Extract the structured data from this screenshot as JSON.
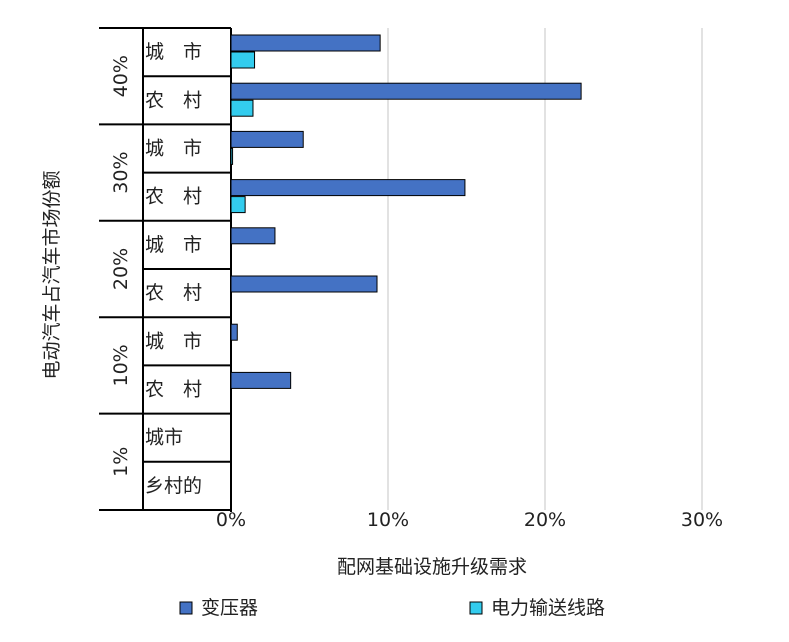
{
  "chart_data": {
    "type": "bar",
    "orientation": "horizontal",
    "xlabel": "配网基础设施升级需求",
    "ylabel": "电动汽车占汽车市场份额",
    "xlim": [
      0,
      30
    ],
    "x_ticks": [
      "0%",
      "10%",
      "20%",
      "30%"
    ],
    "grid": true,
    "legend_position": "bottom",
    "groups": [
      {
        "label": "40%",
        "rows": [
          {
            "label": "城　市",
            "values": {
              "transformer": 9.5,
              "line": 1.5
            }
          },
          {
            "label": "农　村",
            "values": {
              "transformer": 22.3,
              "line": 1.4
            }
          }
        ]
      },
      {
        "label": "30%",
        "rows": [
          {
            "label": "城　市",
            "values": {
              "transformer": 4.6,
              "line": 0.1
            }
          },
          {
            "label": "农　村",
            "values": {
              "transformer": 14.9,
              "line": 0.9
            }
          }
        ]
      },
      {
        "label": "20%",
        "rows": [
          {
            "label": "城　市",
            "values": {
              "transformer": 2.8,
              "line": 0
            }
          },
          {
            "label": "农　村",
            "values": {
              "transformer": 9.3,
              "line": 0
            }
          }
        ]
      },
      {
        "label": "10%",
        "rows": [
          {
            "label": "城　市",
            "values": {
              "transformer": 0.4,
              "line": 0
            }
          },
          {
            "label": "农　村",
            "values": {
              "transformer": 3.8,
              "line": 0
            }
          }
        ]
      },
      {
        "label": "1%",
        "rows": [
          {
            "label": "城市",
            "values": {
              "transformer": 0,
              "line": 0
            }
          },
          {
            "label": "乡村的",
            "values": {
              "transformer": 0,
              "line": 0
            }
          }
        ]
      }
    ],
    "series": [
      {
        "key": "transformer",
        "name": "变压器",
        "color": "#4472C4"
      },
      {
        "key": "line",
        "name": "电力输送线路",
        "color": "#33CCEE"
      }
    ]
  }
}
